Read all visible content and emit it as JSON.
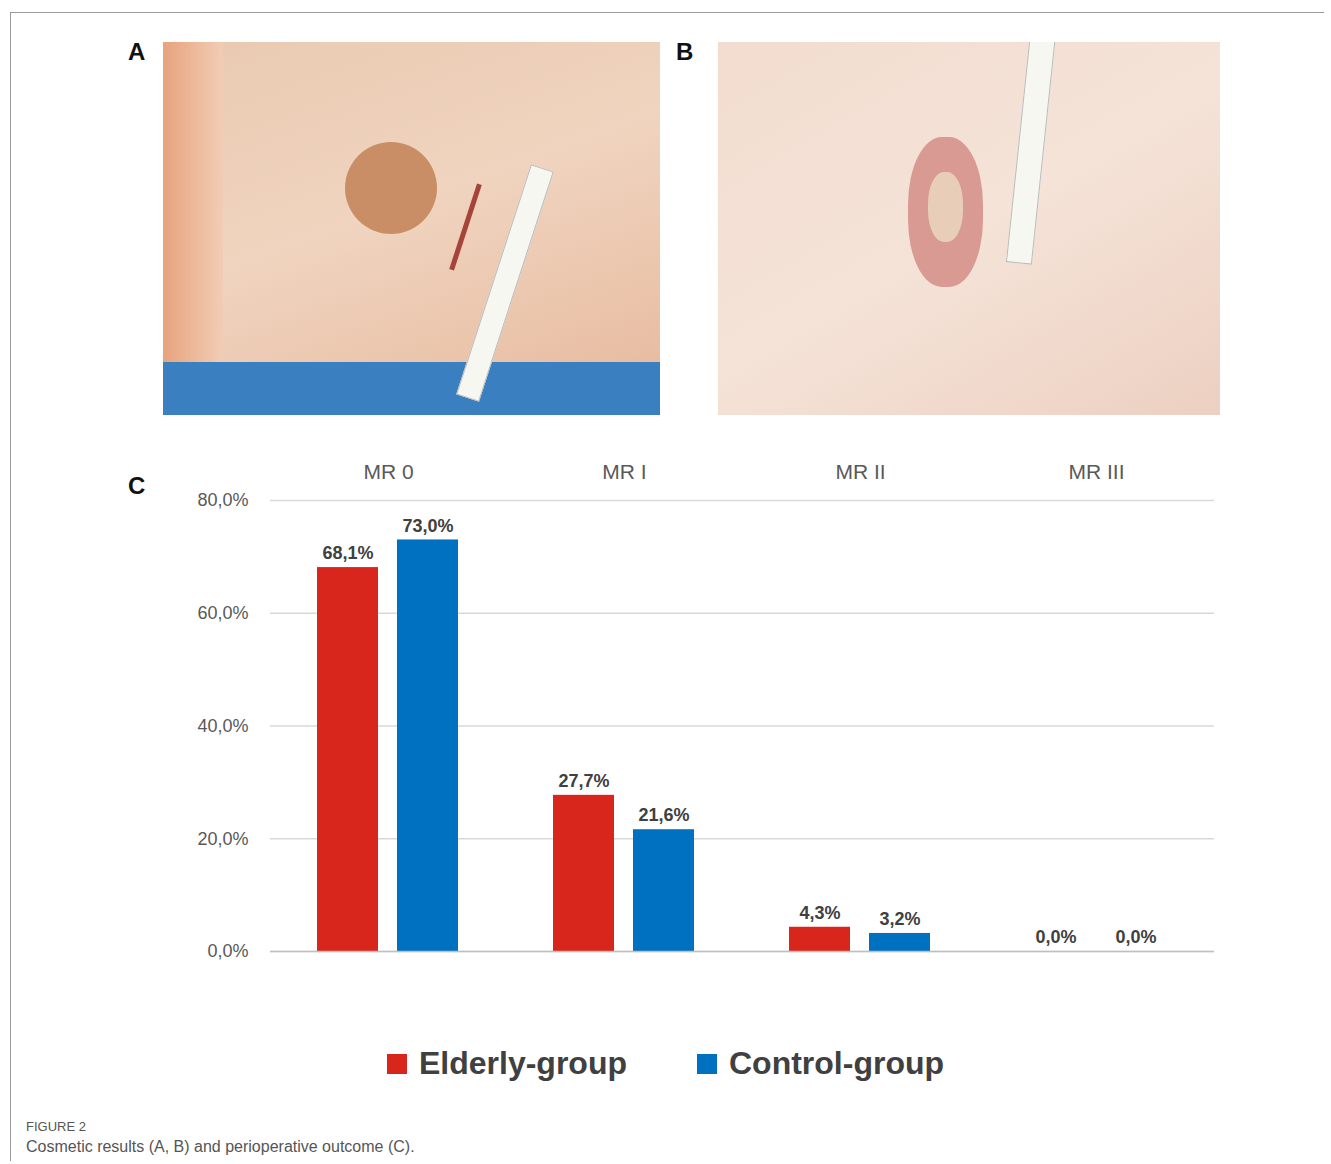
{
  "figure": {
    "label": "FIGURE 2",
    "caption": "Cosmetic results (A, B) and perioperative outcome (C).",
    "panels": [
      "A",
      "B",
      "C"
    ]
  },
  "chart_data": {
    "type": "bar",
    "categories": [
      "MR 0",
      "MR I",
      "MR II",
      "MR III"
    ],
    "series": [
      {
        "name": "Elderly-group",
        "color": "#d9261c",
        "values": [
          68.1,
          27.7,
          4.3,
          0.0
        ],
        "value_labels": [
          "68,1%",
          "27,7%",
          "4,3%",
          "0,0%"
        ]
      },
      {
        "name": "Control-group",
        "color": "#0070c0",
        "values": [
          73.0,
          21.6,
          3.2,
          0.0
        ],
        "value_labels": [
          "73,0%",
          "21,6%",
          "3,2%",
          "0,0%"
        ]
      }
    ],
    "ylim": [
      0,
      80
    ],
    "yticks": [
      {
        "value": 0,
        "label": "0,0%"
      },
      {
        "value": 20,
        "label": "20,0%"
      },
      {
        "value": 40,
        "label": "40,0%"
      },
      {
        "value": 60,
        "label": "60,0%"
      },
      {
        "value": 80,
        "label": "80,0%"
      }
    ],
    "grid": true,
    "data_labels": true,
    "legend": "bottom"
  }
}
